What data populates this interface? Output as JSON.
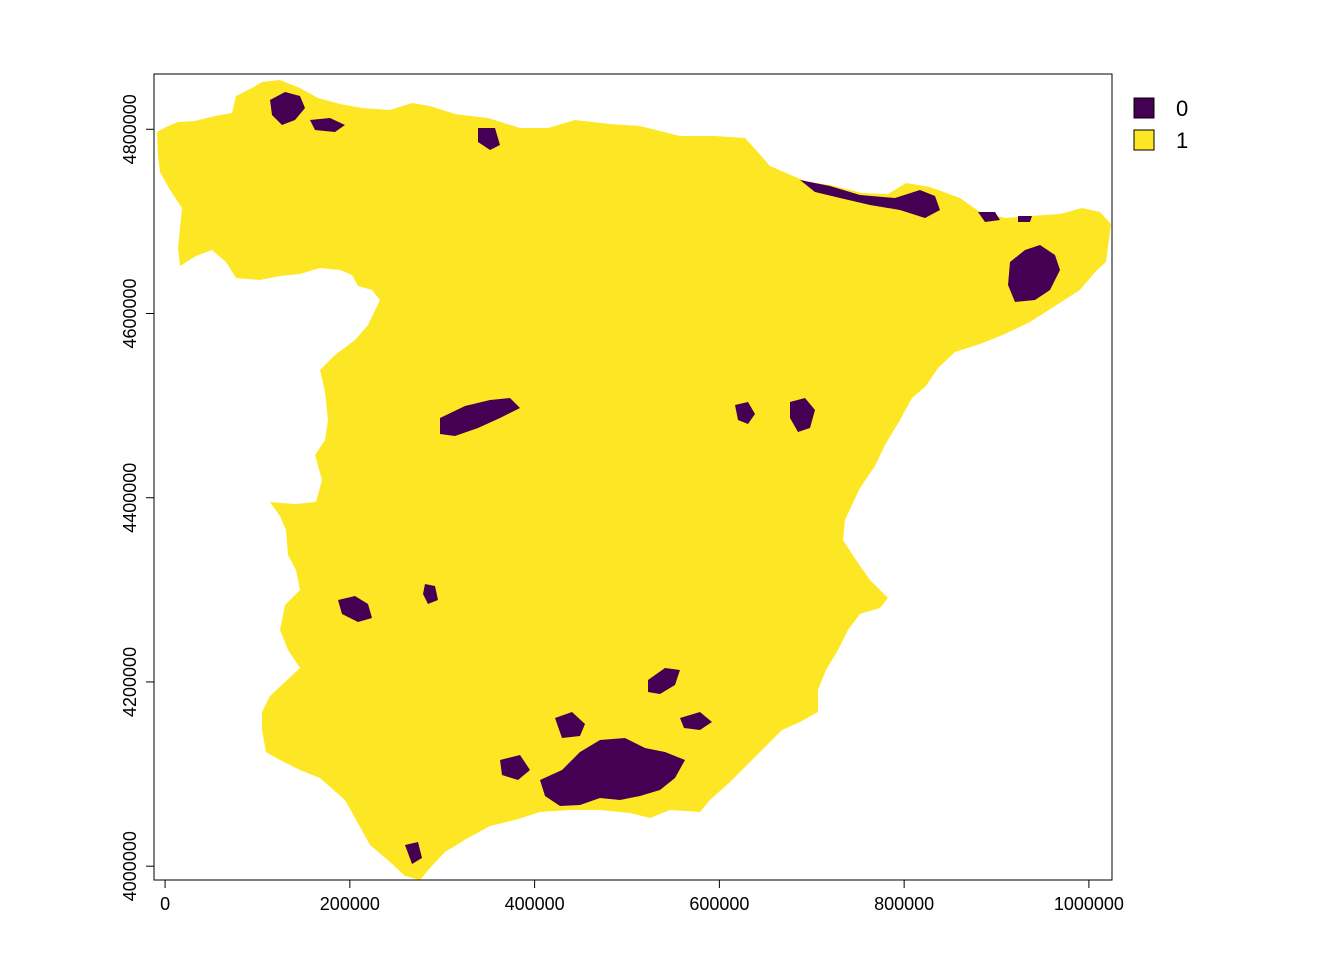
{
  "chart_data": {
    "type": "heatmap",
    "title": "",
    "xlabel": "",
    "ylabel": "",
    "xlim": [
      -12000,
      1025000
    ],
    "ylim": [
      3985000,
      4860000
    ],
    "x_ticks": [
      0,
      200000,
      400000,
      600000,
      800000,
      1000000
    ],
    "y_ticks": [
      4000000,
      4200000,
      4400000,
      4600000,
      4800000
    ],
    "x_tick_labels": [
      "0",
      "200000",
      "400000",
      "600000",
      "800000",
      "1000000"
    ],
    "y_tick_labels": [
      "4000000",
      "4200000",
      "4400000",
      "4600000",
      "4800000"
    ],
    "legend": {
      "position": "top-right",
      "entries": [
        {
          "label": "0",
          "value": 0,
          "color": "#440154"
        },
        {
          "label": "1",
          "value": 1,
          "color": "#fde725"
        }
      ]
    },
    "region": "Iberian Peninsula (Spain)",
    "raster_values": [
      0,
      1
    ],
    "dominant_value": 1
  },
  "colors": {
    "value_0": "#440154",
    "value_1": "#fde725",
    "axis": "#000000",
    "background": "#ffffff"
  }
}
